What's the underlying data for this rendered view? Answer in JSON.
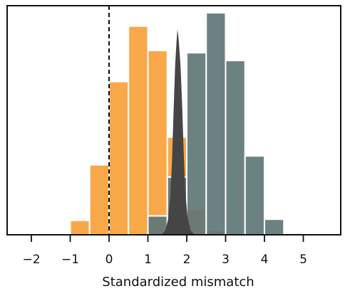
{
  "chart_data": {
    "type": "bar",
    "title": "",
    "xlabel": "Standardized mismatch",
    "ylabel": "",
    "xlim": [
      -2.5,
      6
    ],
    "ylim": [
      0,
      1
    ],
    "grid": false,
    "x_ticks": [
      -2,
      -1,
      0,
      1,
      2,
      3,
      4,
      5
    ],
    "x_tick_labels": [
      "−2",
      "−1",
      "0",
      "1",
      "2",
      "3",
      "4",
      "5"
    ],
    "reference_line": {
      "x": 0,
      "style": "dashed"
    },
    "series": [
      {
        "type": "histogram",
        "color": "#f9a13a",
        "opacity": 0.92,
        "bins": [
          {
            "x0": -1.5,
            "x1": -1.0,
            "value": 0.005
          },
          {
            "x0": -1.0,
            "x1": -0.5,
            "value": 0.065
          },
          {
            "x0": -0.5,
            "x1": 0.0,
            "value": 0.315
          },
          {
            "x0": 0.0,
            "x1": 0.5,
            "value": 0.69
          },
          {
            "x0": 0.5,
            "x1": 1.0,
            "value": 0.94
          },
          {
            "x0": 1.0,
            "x1": 1.5,
            "value": 0.83
          },
          {
            "x0": 1.5,
            "x1": 2.0,
            "value": 0.44
          },
          {
            "x0": 2.0,
            "x1": 2.5,
            "value": 0.115
          },
          {
            "x0": 2.5,
            "x1": 3.0,
            "value": 0.02
          }
        ]
      },
      {
        "type": "histogram",
        "color": "#5f7677",
        "opacity": 0.92,
        "bins": [
          {
            "x0": 1.0,
            "x1": 1.5,
            "value": 0.085
          },
          {
            "x0": 1.5,
            "x1": 2.0,
            "value": 0.26
          },
          {
            "x0": 2.0,
            "x1": 2.5,
            "value": 0.82
          },
          {
            "x0": 2.5,
            "x1": 3.0,
            "value": 1.0
          },
          {
            "x0": 3.0,
            "x1": 3.5,
            "value": 0.785
          },
          {
            "x0": 3.5,
            "x1": 4.0,
            "value": 0.355
          },
          {
            "x0": 4.0,
            "x1": 4.5,
            "value": 0.07
          },
          {
            "x0": 4.5,
            "x1": 5.0,
            "value": 0.007
          }
        ]
      },
      {
        "type": "density",
        "color": "#454545",
        "opacity": 1,
        "points": [
          [
            1.35,
            0.0
          ],
          [
            1.45,
            0.02
          ],
          [
            1.52,
            0.07
          ],
          [
            1.58,
            0.18
          ],
          [
            1.62,
            0.33
          ],
          [
            1.66,
            0.55
          ],
          [
            1.7,
            0.76
          ],
          [
            1.74,
            0.88
          ],
          [
            1.76,
            0.925
          ],
          [
            1.78,
            0.9
          ],
          [
            1.8,
            0.86
          ],
          [
            1.84,
            0.76
          ],
          [
            1.88,
            0.59
          ],
          [
            1.92,
            0.38
          ],
          [
            1.96,
            0.2
          ],
          [
            2.02,
            0.08
          ],
          [
            2.1,
            0.02
          ],
          [
            2.2,
            0.0
          ]
        ]
      }
    ]
  }
}
